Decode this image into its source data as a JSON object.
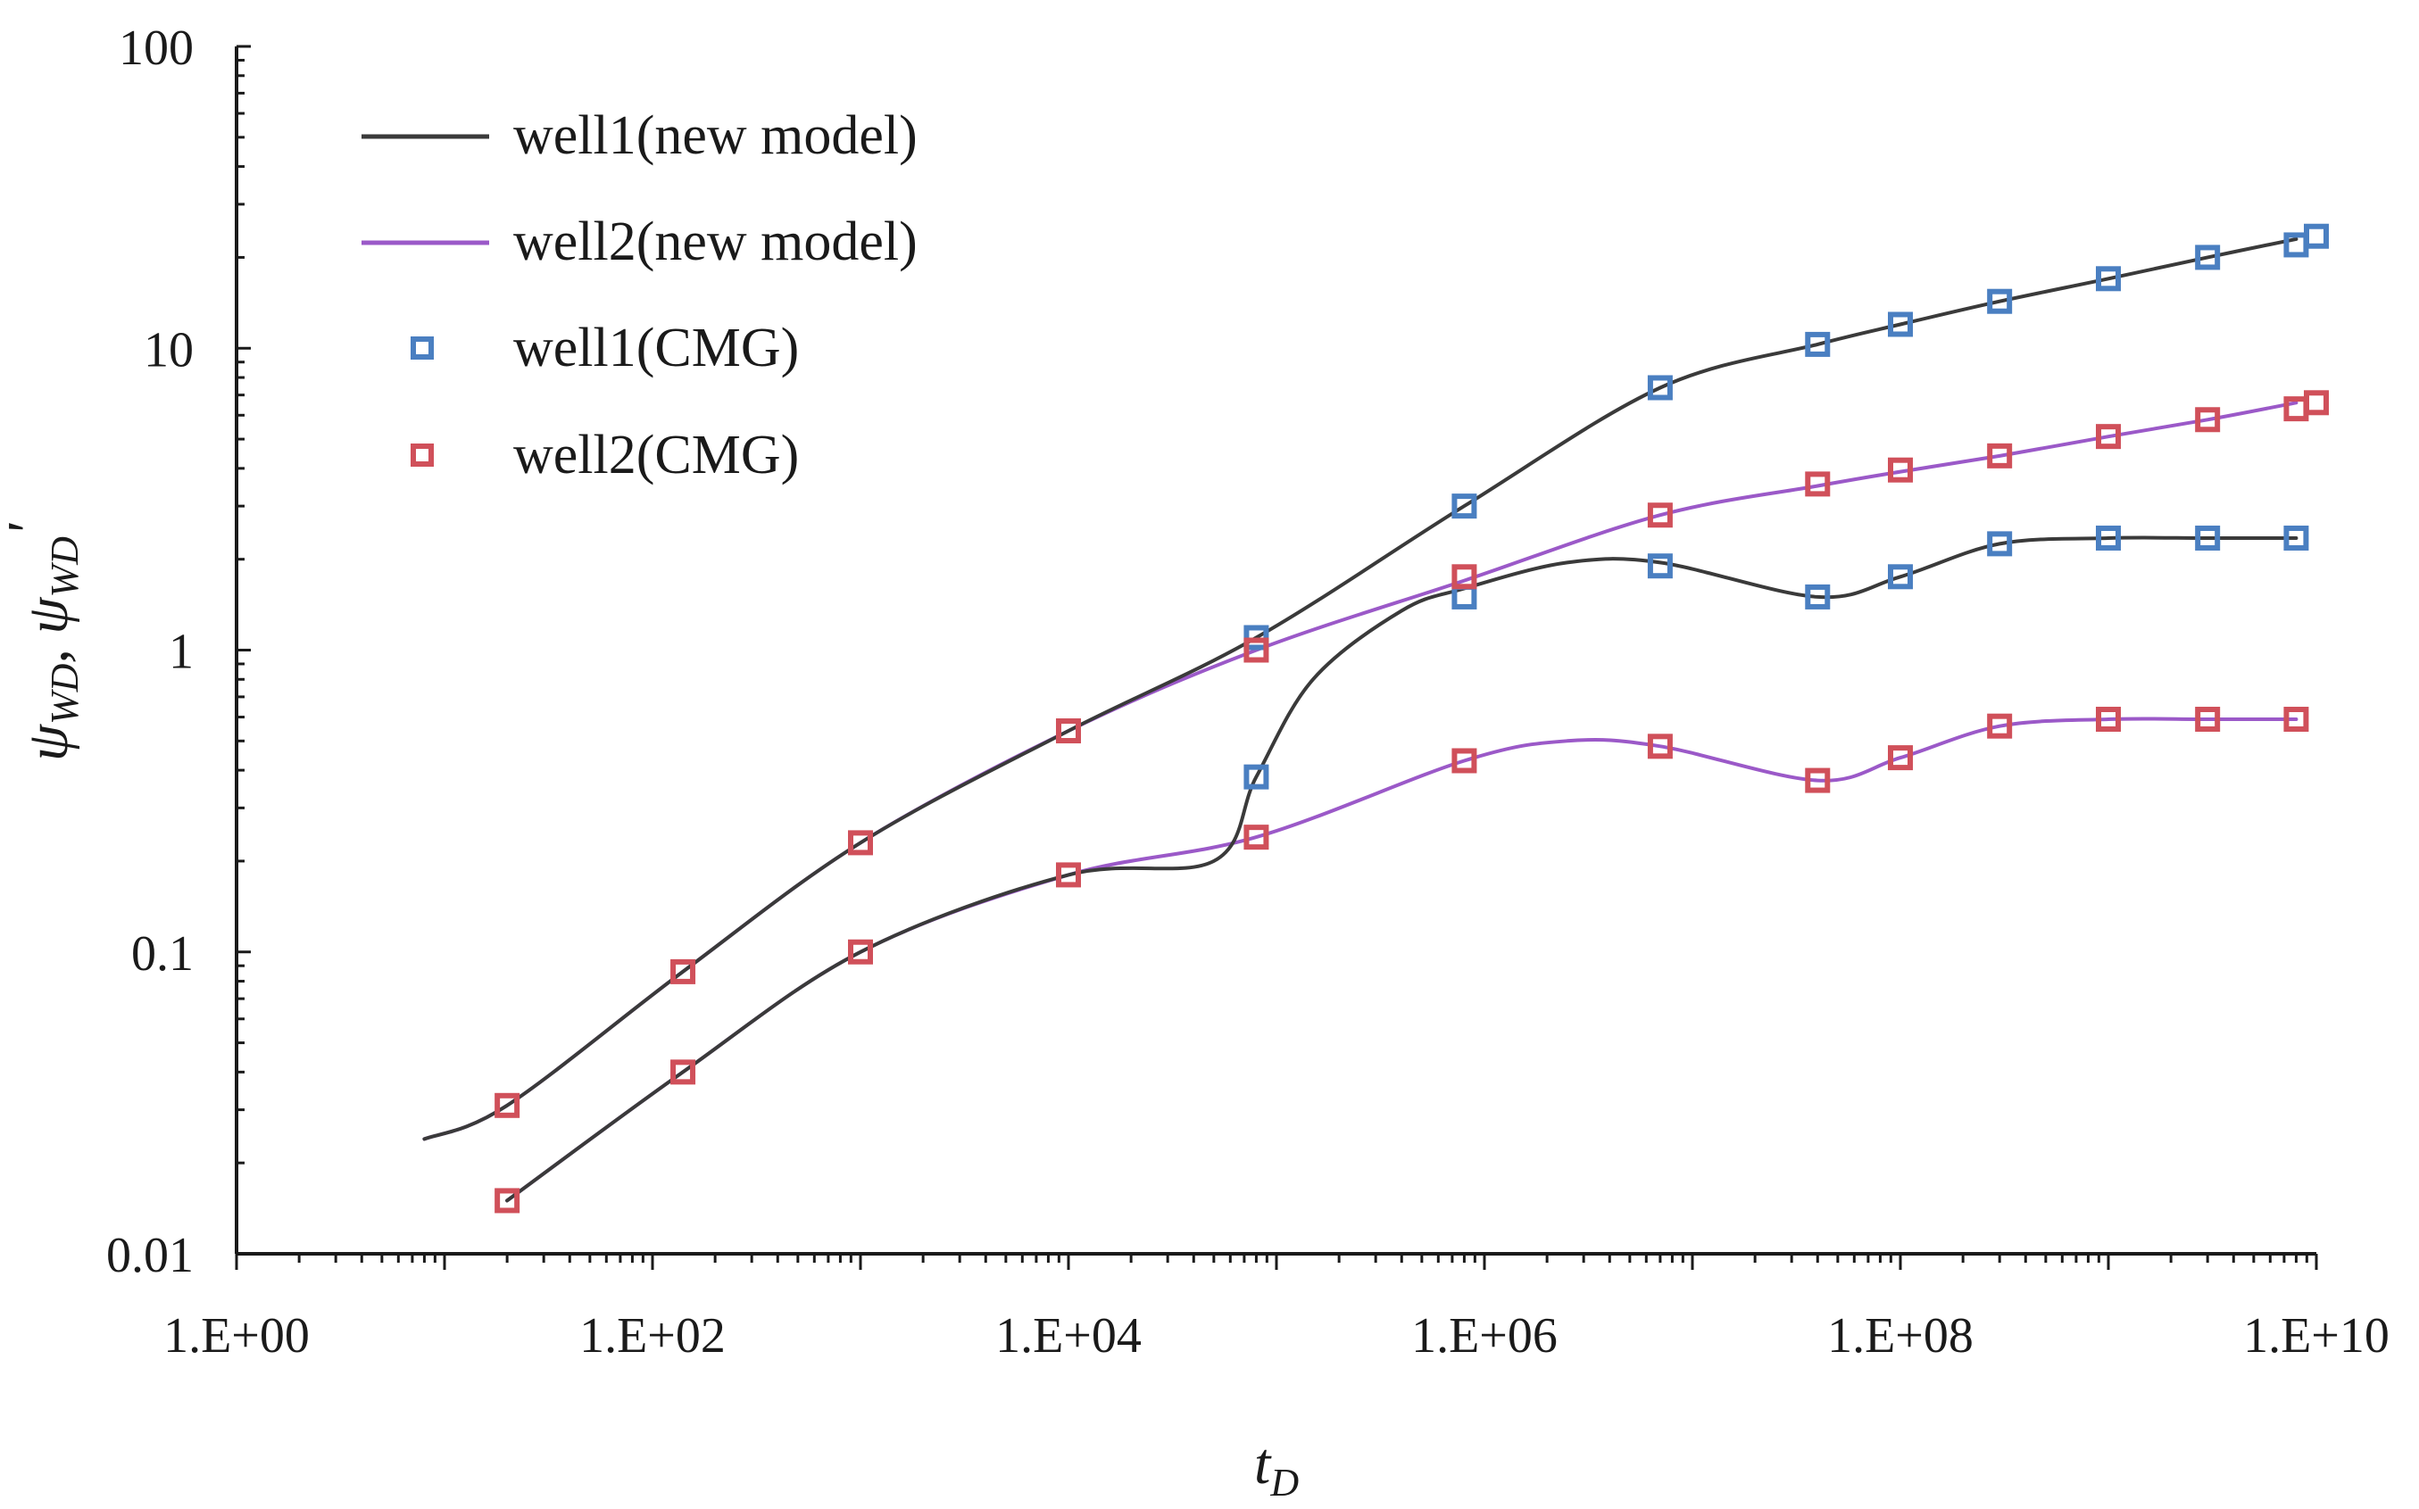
{
  "chart_data": {
    "type": "line",
    "title": "",
    "xlabel": "t_D",
    "ylabel": "ψ_WD, ψ_WD'",
    "xscale": "log",
    "yscale": "log",
    "xlim": [
      1,
      10000000000
    ],
    "ylim": [
      0.01,
      100
    ],
    "x_ticks": [
      {
        "value": 1,
        "label": "1.E+00"
      },
      {
        "value": 100,
        "label": "1.E+02"
      },
      {
        "value": 10000,
        "label": "1.E+04"
      },
      {
        "value": 1000000,
        "label": "1.E+06"
      },
      {
        "value": 100000000,
        "label": "1.E+08"
      },
      {
        "value": 10000000000,
        "label": "1.E+10"
      }
    ],
    "y_ticks": [
      {
        "value": 0.01,
        "label": "0.01"
      },
      {
        "value": 0.1,
        "label": "0.1"
      },
      {
        "value": 1,
        "label": "1"
      },
      {
        "value": 10,
        "label": "10"
      },
      {
        "value": 100,
        "label": "100"
      }
    ],
    "legend_position": "top-left",
    "series": [
      {
        "name": "well1(new model)",
        "kind": "line",
        "color": "#3a3a3a",
        "curves": [
          {
            "role": "pressure",
            "x": [
              8,
              20,
              140,
              1000,
              10000,
              80000,
              800000,
              7000000,
              40000000,
              100000000,
              300000000,
              1000000000,
              3000000000,
              8000000000
            ],
            "y": [
              0.024,
              0.031,
              0.086,
              0.23,
              0.54,
              1.1,
              3.0,
              7.4,
              10.3,
              12.0,
              14.3,
              17.0,
              20.0,
              23.0
            ]
          },
          {
            "role": "derivative",
            "x": [
              20,
              140,
              1000,
              10000,
              50000,
              80000,
              150000,
              400000,
              800000,
              2500000,
              7000000,
              40000000,
              100000000,
              300000000,
              1000000000,
              3000000000,
              8000000000
            ],
            "y": [
              0.015,
              0.04,
              0.1,
              0.18,
              0.2,
              0.38,
              0.8,
              1.35,
              1.6,
              1.95,
              1.95,
              1.5,
              1.75,
              2.25,
              2.35,
              2.35,
              2.35
            ]
          }
        ]
      },
      {
        "name": "well2(new model)",
        "kind": "line",
        "color": "#9b59c8",
        "curves": [
          {
            "role": "pressure",
            "x": [
              8,
              20,
              140,
              1000,
              10000,
              80000,
              800000,
              7000000,
              40000000,
              100000000,
              300000000,
              1000000000,
              3000000000,
              8000000000
            ],
            "y": [
              0.024,
              0.031,
              0.086,
              0.23,
              0.54,
              1.0,
              1.7,
              2.8,
              3.5,
              3.9,
              4.4,
              5.1,
              5.8,
              6.6
            ]
          },
          {
            "role": "derivative",
            "x": [
              20,
              140,
              1000,
              10000,
              80000,
              800000,
              2500000,
              7000000,
              40000000,
              100000000,
              300000000,
              1000000000,
              3000000000,
              8000000000
            ],
            "y": [
              0.015,
              0.04,
              0.1,
              0.18,
              0.24,
              0.43,
              0.5,
              0.48,
              0.37,
              0.44,
              0.56,
              0.59,
              0.59,
              0.59
            ]
          }
        ]
      },
      {
        "name": "well1(CMG)",
        "kind": "markers",
        "marker": "square",
        "color": "#4a7fc1",
        "x": [
          80000,
          800000,
          7000000,
          40000000,
          100000000,
          300000000,
          1000000000,
          3000000000,
          8000000000,
          10000000000,
          7000000,
          40000000,
          100000000,
          300000000,
          1000000000,
          3000000000,
          8000000000,
          800000,
          80000
        ],
        "y": [
          1.1,
          3.0,
          7.4,
          10.3,
          12.0,
          14.3,
          17.0,
          20.0,
          22.0,
          23.5,
          1.9,
          1.5,
          1.75,
          2.25,
          2.35,
          2.35,
          2.35,
          1.5,
          0.38
        ]
      },
      {
        "name": "well2(CMG)",
        "kind": "markers",
        "marker": "square",
        "color": "#d0505a",
        "x": [
          20,
          140,
          1000,
          10000,
          80000,
          800000,
          7000000,
          40000000,
          100000000,
          300000000,
          1000000000,
          3000000000,
          8000000000,
          10000000000,
          20,
          140,
          1000,
          10000,
          80000,
          800000,
          7000000,
          40000000,
          100000000,
          300000000,
          1000000000,
          3000000000,
          8000000000
        ],
        "y": [
          0.031,
          0.086,
          0.23,
          0.54,
          1.0,
          1.75,
          2.8,
          3.55,
          3.95,
          4.4,
          5.1,
          5.8,
          6.3,
          6.6,
          0.015,
          0.04,
          0.1,
          0.18,
          0.24,
          0.43,
          0.48,
          0.37,
          0.44,
          0.56,
          0.59,
          0.59,
          0.59
        ]
      }
    ]
  }
}
